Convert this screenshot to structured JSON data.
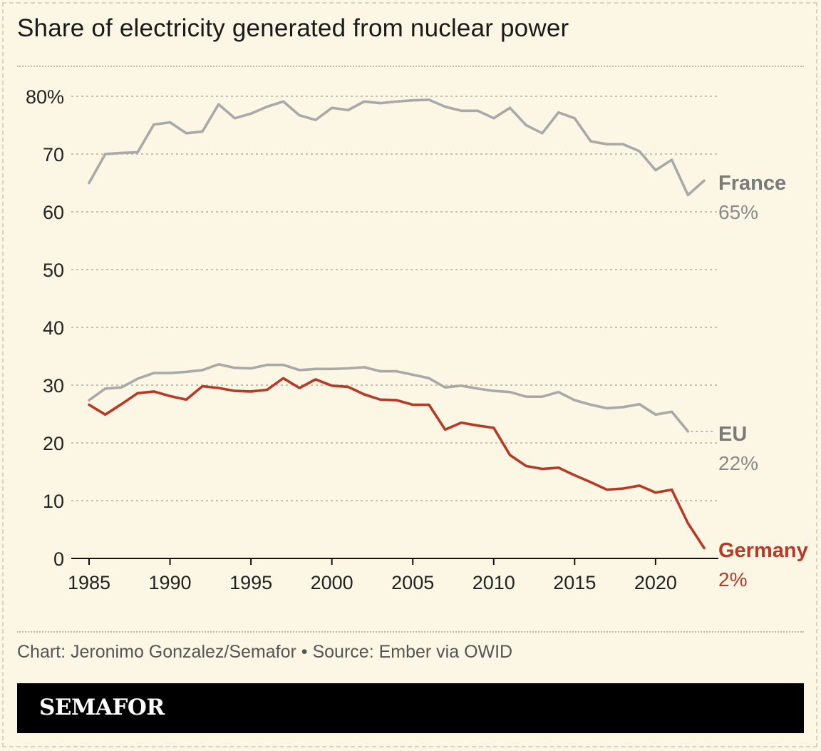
{
  "header": {
    "title": "Share of electricity generated from nuclear power"
  },
  "footer": {
    "note": "Chart: Jeronimo Gonzalez/Semafor • Source: Ember via OWID",
    "brand": "SEMAFOR"
  },
  "colors": {
    "background": "#fbf7e4",
    "gray_series": "#a9a9a9",
    "germany": "#b83a26",
    "label_gray": "#7a7a7a"
  },
  "chart_data": {
    "type": "line",
    "title": "Share of electricity generated from nuclear power",
    "xlabel": "",
    "ylabel": "",
    "xlim": [
      1985,
      2023
    ],
    "ylim": [
      0,
      80
    ],
    "x_ticks": [
      1985,
      1990,
      1995,
      2000,
      2005,
      2010,
      2015,
      2020
    ],
    "y_ticks": [
      0,
      10,
      20,
      30,
      40,
      50,
      60,
      70,
      80
    ],
    "y_tick_labels": [
      "0",
      "10",
      "20",
      "30",
      "40",
      "50",
      "60",
      "70",
      "80%"
    ],
    "grid": true,
    "legend": "direct labels at line ends",
    "series": [
      {
        "name": "France",
        "end_label": "65%",
        "color": "#a9a9a9",
        "x": [
          1985,
          1986,
          1987,
          1988,
          1989,
          1990,
          1991,
          1992,
          1993,
          1994,
          1995,
          1996,
          1997,
          1998,
          1999,
          2000,
          2001,
          2002,
          2003,
          2004,
          2005,
          2006,
          2007,
          2008,
          2009,
          2010,
          2011,
          2012,
          2013,
          2014,
          2015,
          2016,
          2017,
          2018,
          2019,
          2020,
          2021,
          2022,
          2023
        ],
        "y": [
          65,
          70,
          70.2,
          70.3,
          75.1,
          75.5,
          73.6,
          73.9,
          78.6,
          76.2,
          77.0,
          78.2,
          79.1,
          76.7,
          75.9,
          78.0,
          77.6,
          79.1,
          78.8,
          79.1,
          79.3,
          79.4,
          78.2,
          77.5,
          77.5,
          76.2,
          78.0,
          75.0,
          73.6,
          77.2,
          76.2,
          72.2,
          71.7,
          71.7,
          70.5,
          67.2,
          69.0,
          62.9,
          65.4
        ]
      },
      {
        "name": "EU",
        "end_label": "22%",
        "color": "#a9a9a9",
        "x": [
          1985,
          1986,
          1987,
          1988,
          1989,
          1990,
          1991,
          1992,
          1993,
          1994,
          1995,
          1996,
          1997,
          1998,
          1999,
          2000,
          2001,
          2002,
          2003,
          2004,
          2005,
          2006,
          2007,
          2008,
          2009,
          2010,
          2011,
          2012,
          2013,
          2014,
          2015,
          2016,
          2017,
          2018,
          2019,
          2020,
          2021,
          2022
        ],
        "y": [
          27.4,
          29.4,
          29.6,
          31.1,
          32.1,
          32.1,
          32.3,
          32.6,
          33.6,
          33.0,
          32.9,
          33.5,
          33.5,
          32.6,
          32.8,
          32.8,
          32.9,
          33.1,
          32.4,
          32.4,
          31.8,
          31.2,
          29.6,
          29.9,
          29.4,
          29.0,
          28.8,
          28.0,
          28.0,
          28.8,
          27.4,
          26.6,
          26.0,
          26.2,
          26.7,
          24.9,
          25.4,
          22.0
        ]
      },
      {
        "name": "Germany",
        "end_label": "2%",
        "color": "#b83a26",
        "x": [
          1985,
          1986,
          1987,
          1988,
          1989,
          1990,
          1991,
          1992,
          1993,
          1994,
          1995,
          1996,
          1997,
          1998,
          1999,
          2000,
          2001,
          2002,
          2003,
          2004,
          2005,
          2006,
          2007,
          2008,
          2009,
          2010,
          2011,
          2012,
          2013,
          2014,
          2015,
          2016,
          2017,
          2018,
          2019,
          2020,
          2021,
          2022,
          2023
        ],
        "y": [
          26.6,
          24.9,
          26.7,
          28.6,
          28.9,
          28.1,
          27.5,
          29.8,
          29.5,
          29.0,
          28.9,
          29.2,
          31.2,
          29.5,
          31.0,
          29.9,
          29.7,
          28.4,
          27.5,
          27.4,
          26.6,
          26.6,
          22.3,
          23.5,
          23.0,
          22.6,
          17.9,
          16.0,
          15.5,
          15.7,
          14.4,
          13.2,
          11.9,
          12.1,
          12.6,
          11.4,
          11.9,
          6.1,
          1.8
        ]
      }
    ]
  }
}
